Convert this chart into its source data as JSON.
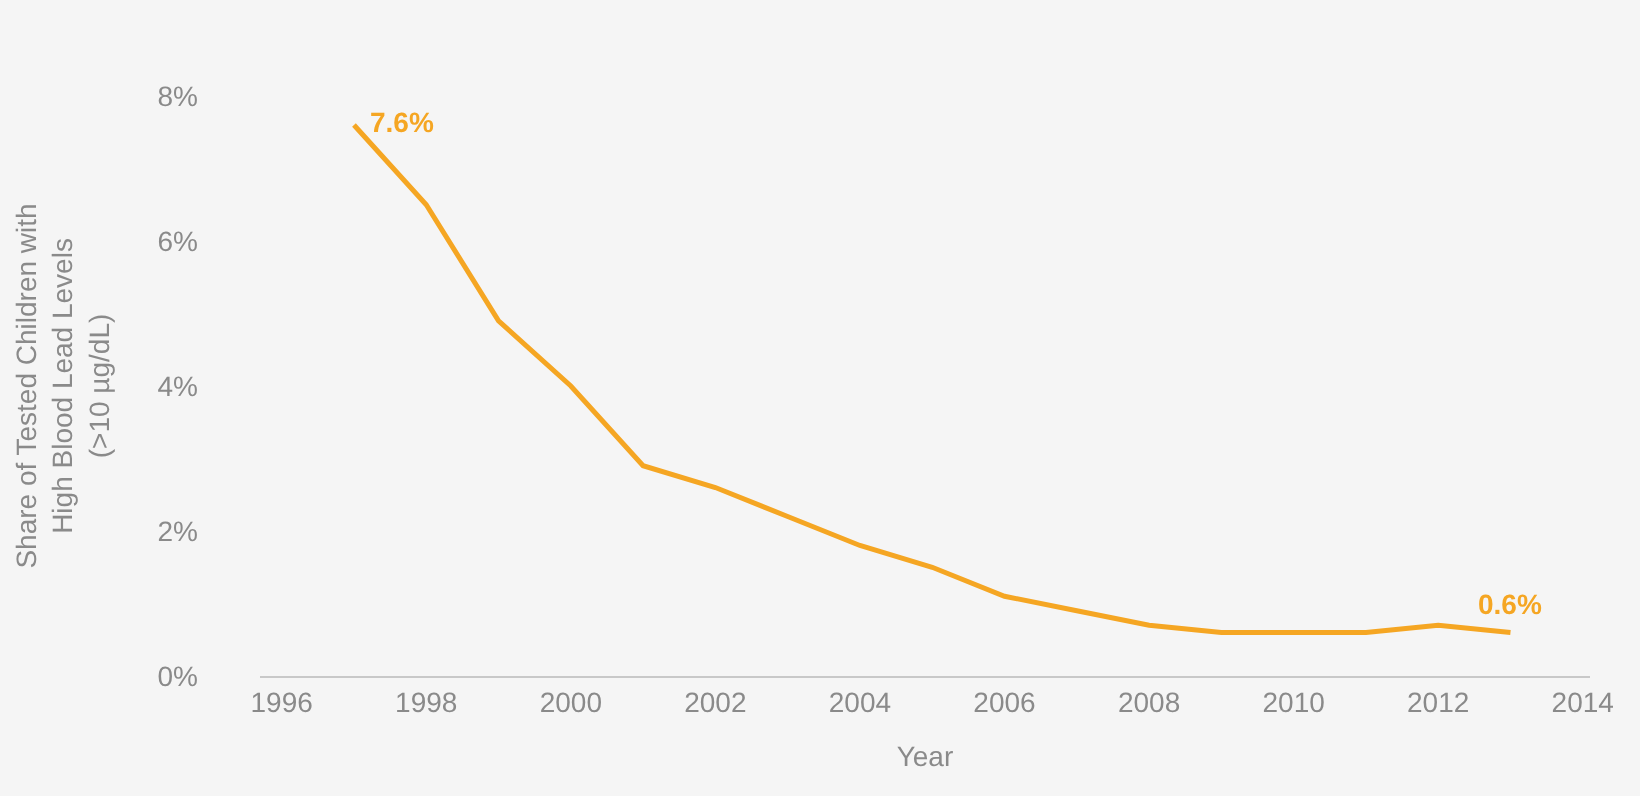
{
  "chart_data": {
    "type": "line",
    "x": [
      1997,
      1998,
      1999,
      2000,
      2001,
      2002,
      2003,
      2004,
      2005,
      2006,
      2007,
      2008,
      2009,
      2010,
      2011,
      2012,
      2013
    ],
    "series": [
      {
        "color": "#f5a623",
        "values": [
          7.6,
          6.5,
          4.9,
          4.0,
          2.9,
          2.6,
          2.2,
          1.8,
          1.5,
          1.1,
          0.9,
          0.7,
          0.6,
          0.6,
          0.6,
          0.7,
          0.6
        ]
      }
    ],
    "xlabel": "Year",
    "ylabel": "Share of Tested Children with\nHigh Blood Lead Levels\n(>10 µg/dL)",
    "xlim": [
      1995.7,
      2014.1
    ],
    "xticks": [
      1996,
      1998,
      2000,
      2002,
      2004,
      2006,
      2008,
      2010,
      2012,
      2014
    ],
    "ylim": [
      0,
      8
    ],
    "yticks": [
      {
        "value": 0,
        "label": "0%"
      },
      {
        "value": 2,
        "label": "2%"
      },
      {
        "value": 4,
        "label": "4%"
      },
      {
        "value": 6,
        "label": "6%"
      },
      {
        "value": 8,
        "label": "8%"
      }
    ],
    "annotations": [
      {
        "text": "7.6%",
        "x": 1997,
        "y": 7.6
      },
      {
        "text": "0.6%",
        "x": 2013,
        "y": 0.6
      }
    ],
    "grid": false,
    "marker": "none",
    "line_style": "solid"
  }
}
